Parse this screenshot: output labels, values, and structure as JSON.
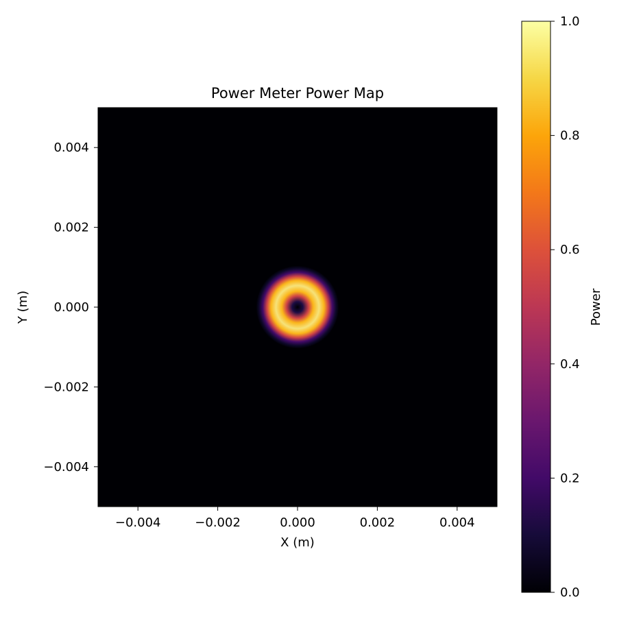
{
  "chart_data": {
    "type": "heatmap",
    "title": "Power Meter Power Map",
    "xlabel": "X (m)",
    "ylabel": "Y (m)",
    "xlim": [
      -0.005,
      0.005
    ],
    "ylim": [
      -0.005,
      0.005
    ],
    "xticks": [
      "−0.004",
      "−0.002",
      "0.000",
      "0.002",
      "0.004"
    ],
    "xtick_values": [
      -0.004,
      -0.002,
      0.0,
      0.002,
      0.004
    ],
    "yticks": [
      "−0.004",
      "−0.002",
      "0.000",
      "0.002",
      "0.004"
    ],
    "ytick_values": [
      -0.004,
      -0.002,
      0.0,
      0.002,
      0.004
    ],
    "grid": false,
    "colormap": "inferno",
    "colorbar": {
      "label": "Power",
      "range": [
        0.0,
        1.0
      ],
      "ticks": [
        "0.0",
        "0.2",
        "0.4",
        "0.6",
        "0.8",
        "1.0"
      ],
      "tick_values": [
        0.0,
        0.2,
        0.4,
        0.6,
        0.8,
        1.0
      ]
    },
    "field": {
      "shape": "ring",
      "center": [
        0.0,
        0.0
      ],
      "peak_radius": 0.0006,
      "peak_value": 1.0,
      "center_value": 0.0
    }
  }
}
